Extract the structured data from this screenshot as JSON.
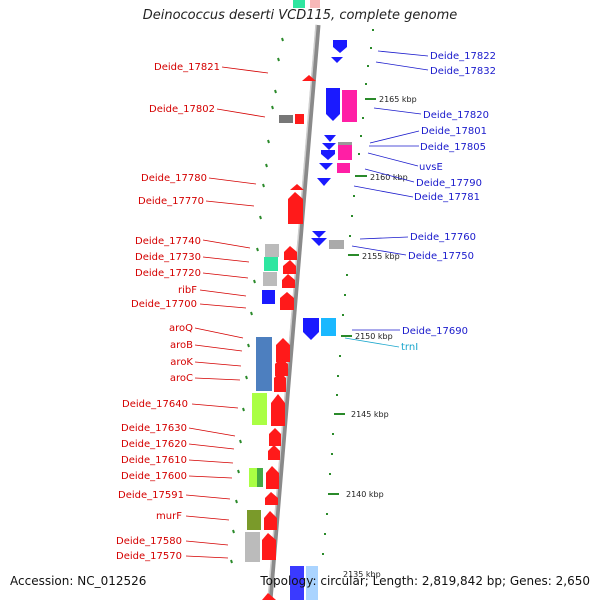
{
  "title": "Deinococcus deserti VCD115, complete genome",
  "footer": {
    "accession": "Accession: NC_012526",
    "topology": "Topology: circular; Length: 2,819,842 bp; Genes: 2,650"
  },
  "colors": {
    "left_label": "#d40000",
    "right_label": "#1a1acc",
    "rna_label": "#1aa6cc",
    "backbone": "#8a8a8a",
    "tick": "#2a8a2a"
  },
  "scale_labels": [
    "2165 kbp",
    "2160 kbp",
    "2155 kbp",
    "2150 kbp",
    "2145 kbp",
    "2140 kbp",
    "2135 kbp"
  ],
  "left_labels": [
    "Deide_17821",
    "Deide_17802",
    "Deide_17780",
    "Deide_17770",
    "Deide_17740",
    "Deide_17730",
    "Deide_17720",
    "ribF",
    "Deide_17700",
    "aroQ",
    "aroB",
    "aroK",
    "aroC",
    "Deide_17640",
    "Deide_17630",
    "Deide_17620",
    "Deide_17610",
    "Deide_17600",
    "Deide_17591",
    "murF",
    "Deide_17580",
    "Deide_17570"
  ],
  "right_labels": [
    "Deide_17822",
    "Deide_17832",
    "Deide_17820",
    "Deide_17801",
    "Deide_17805",
    "uvsE",
    "Deide_17790",
    "Deide_17781",
    "Deide_17760",
    "Deide_17750",
    "Deide_17690"
  ],
  "rna_labels": [
    "trnI"
  ]
}
